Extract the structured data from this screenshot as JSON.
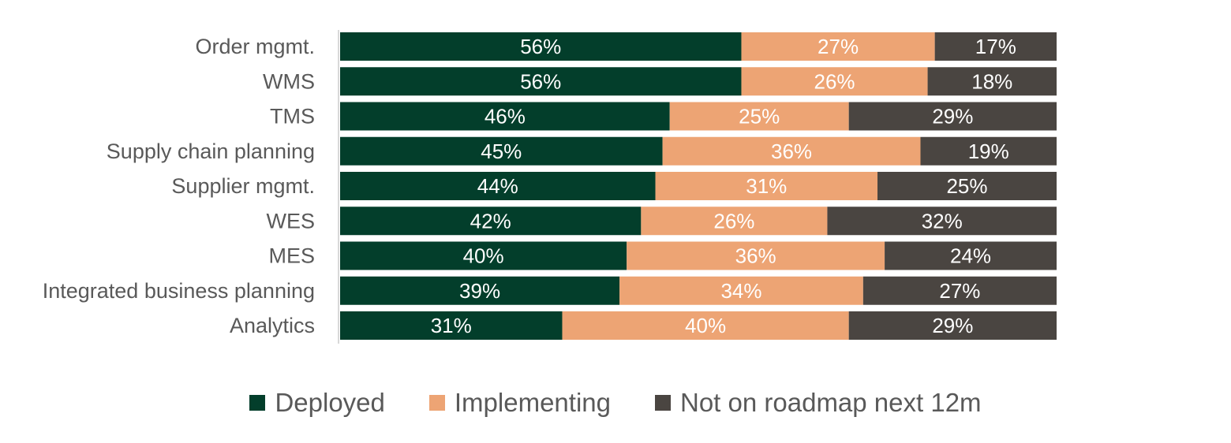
{
  "chart_data": {
    "type": "bar",
    "orientation": "horizontal",
    "stacked": true,
    "percent_stacked": true,
    "categories": [
      "Order mgmt.",
      "WMS",
      "TMS",
      "Supply chain planning",
      "Supplier mgmt.",
      "WES",
      "MES",
      "Integrated business planning",
      "Analytics"
    ],
    "series": [
      {
        "name": "Deployed",
        "color": "#033e2b",
        "label_color": "#ffffff",
        "values": [
          56,
          56,
          46,
          45,
          44,
          42,
          40,
          39,
          31
        ],
        "labels": [
          "56%",
          "56%",
          "46%",
          "45%",
          "44%",
          "42%",
          "40%",
          "39%",
          "31%"
        ]
      },
      {
        "name": "Implementing",
        "color": "#eda474",
        "label_color": "#ffffff",
        "values": [
          27,
          26,
          25,
          36,
          31,
          26,
          36,
          34,
          40
        ],
        "labels": [
          "27%",
          "26%",
          "25%",
          "36%",
          "31%",
          "26%",
          "36%",
          "34%",
          "40%"
        ]
      },
      {
        "name": "Not on roadmap next 12m",
        "color": "#4a4541",
        "label_color": "#ffffff",
        "values": [
          17,
          18,
          29,
          19,
          25,
          32,
          24,
          27,
          29
        ],
        "labels": [
          "17%",
          "18%",
          "29%",
          "19%",
          "25%",
          "32%",
          "24%",
          "27%",
          "29%"
        ]
      }
    ],
    "title": "",
    "xlabel": "",
    "ylabel": "",
    "legend_position": "bottom",
    "grid": false
  }
}
